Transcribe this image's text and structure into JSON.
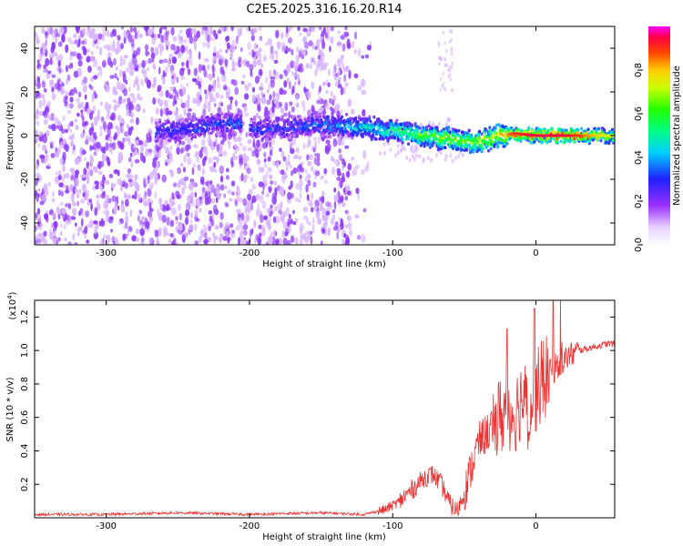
{
  "figure": {
    "title": "C2E5.2025.316.16.20.R14"
  },
  "chart_data": [
    {
      "type": "heatmap",
      "title": "C2E5.2025.316.16.20.R14",
      "xlabel": "Height of straight line (km)",
      "ylabel": "Frequency (Hz)",
      "xlim": [
        -350,
        55
      ],
      "ylim": [
        -50,
        50
      ],
      "xticks": [
        -300,
        -200,
        -100,
        0
      ],
      "yticks": [
        -40,
        -20,
        0,
        20,
        40
      ],
      "colorbar": {
        "label": "Normalized spectral amplitude",
        "range": [
          0,
          1
        ],
        "ticks": [
          0.0,
          0.2,
          0.4,
          0.6,
          0.8
        ]
      },
      "signal_center_track": {
        "x": [
          -265,
          -240,
          -215,
          -195,
          -170,
          -150,
          -125,
          -110,
          -95,
          -80,
          -65,
          -55,
          -45,
          -35,
          -25,
          -15,
          0,
          20,
          55
        ],
        "freq": [
          2,
          3,
          6,
          3,
          4,
          5,
          4,
          3,
          2,
          0,
          -1,
          -2,
          -3,
          -2,
          0,
          1,
          0,
          0,
          0
        ]
      },
      "signal_peak_amplitude": {
        "x": [
          -265,
          -240,
          -215,
          -200,
          -150,
          -120,
          -100,
          -80,
          -60,
          -45,
          -30,
          -15,
          0,
          20,
          55
        ],
        "value": [
          0.3,
          0.3,
          0.35,
          0.3,
          0.35,
          0.45,
          0.55,
          0.65,
          0.7,
          0.7,
          0.75,
          0.9,
          0.95,
          0.95,
          0.7
        ]
      }
    },
    {
      "type": "line",
      "xlabel": "Height of straight line (km)",
      "ylabel": "SNR (10 * v/v)",
      "y_multiplier": "(x10",
      "y_multiplier_exp": "4",
      "y_multiplier_close": ")",
      "xlim": [
        -350,
        55
      ],
      "ylim": [
        0,
        1.3
      ],
      "xticks": [
        -300,
        -200,
        -100,
        0
      ],
      "yticks": [
        0.2,
        0.4,
        0.6,
        0.8,
        1.0,
        1.2
      ],
      "series": [
        {
          "name": "SNR",
          "color": "#ee3333",
          "x": [
            -350,
            -300,
            -250,
            -200,
            -150,
            -120,
            -105,
            -95,
            -85,
            -78,
            -72,
            -66,
            -60,
            -55,
            -50,
            -45,
            -40,
            -35,
            -30,
            -25,
            -20,
            -15,
            -10,
            -5,
            0,
            5,
            10,
            15,
            20,
            30,
            40,
            50,
            55
          ],
          "y": [
            0.02,
            0.02,
            0.03,
            0.02,
            0.03,
            0.02,
            0.05,
            0.1,
            0.18,
            0.24,
            0.26,
            0.2,
            0.08,
            0.04,
            0.15,
            0.3,
            0.45,
            0.5,
            0.55,
            0.6,
            0.65,
            0.62,
            0.72,
            0.66,
            0.75,
            0.82,
            0.87,
            0.9,
            0.95,
            1.0,
            1.02,
            1.04,
            1.04
          ]
        }
      ]
    }
  ],
  "colors": {
    "noise": "#8f3bff",
    "noise_light": "#d9b6ff",
    "snr_line": "#ee3333"
  }
}
